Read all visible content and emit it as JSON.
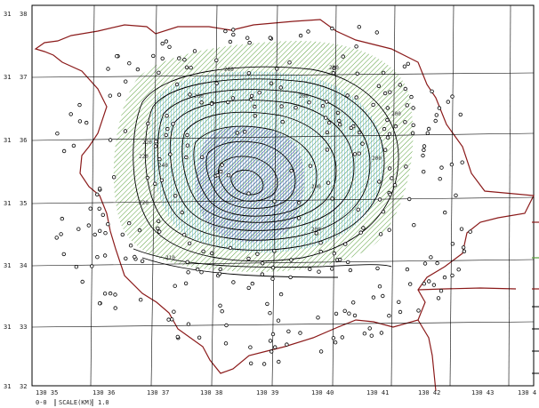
{
  "map": {
    "lat_labels": [
      {
        "deg": "31",
        "min": "38"
      },
      {
        "deg": "31",
        "min": "37"
      },
      {
        "deg": "31",
        "min": "36"
      },
      {
        "deg": "31",
        "min": "35"
      },
      {
        "deg": "31",
        "min": "34"
      },
      {
        "deg": "31",
        "min": "33"
      },
      {
        "deg": "31",
        "min": "32"
      }
    ],
    "lon_labels": [
      "130 35",
      "130 36",
      "130 37",
      "130 38",
      "130 39",
      "130 40",
      "130 41",
      "130 42",
      "130 43",
      "130 4"
    ],
    "contour_labels": [
      "280",
      "280",
      "240",
      "220",
      "220",
      "220",
      "200",
      "200",
      "200",
      "200",
      "210",
      "200",
      "200"
    ],
    "footer": {
      "origin": "0-0",
      "scale_label": "SCALE(KM)",
      "scale_value": "1.0"
    }
  },
  "colors": {
    "boundary": "#8b1a1a",
    "green_hatch": "#5aa03c",
    "blue_hatch": "#4aa8c8",
    "core_hatch": "#3a3a9a",
    "grid": "#000000",
    "contour": "#000000"
  }
}
